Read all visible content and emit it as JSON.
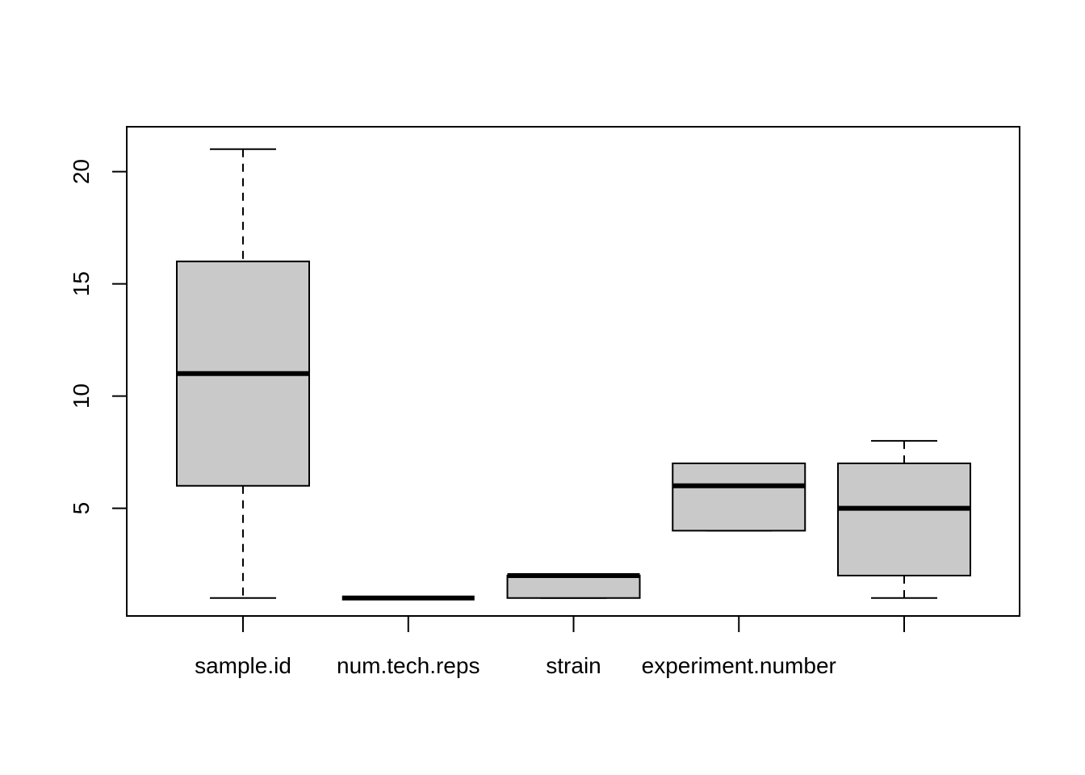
{
  "chart_data": {
    "type": "boxplot",
    "categories": [
      "sample.id",
      "num.tech.reps",
      "strain",
      "experiment.number",
      ""
    ],
    "boxes": [
      {
        "whisker_low": 1,
        "q1": 6,
        "median": 11,
        "q3": 16,
        "whisker_high": 21
      },
      {
        "whisker_low": 1,
        "q1": 1,
        "median": 1,
        "q3": 1,
        "whisker_high": 1
      },
      {
        "whisker_low": 1,
        "q1": 1,
        "median": 2,
        "q3": 2,
        "whisker_high": 2
      },
      {
        "whisker_low": 4,
        "q1": 4,
        "median": 6,
        "q3": 7,
        "whisker_high": 7
      },
      {
        "whisker_low": 1,
        "q1": 2,
        "median": 5,
        "q3": 7,
        "whisker_high": 8
      }
    ],
    "y_ticks": [
      5,
      10,
      15,
      20
    ],
    "ylim": [
      0.2,
      22
    ],
    "box_color": "#c9c9c9",
    "title": "",
    "xlabel": "",
    "ylabel": ""
  }
}
